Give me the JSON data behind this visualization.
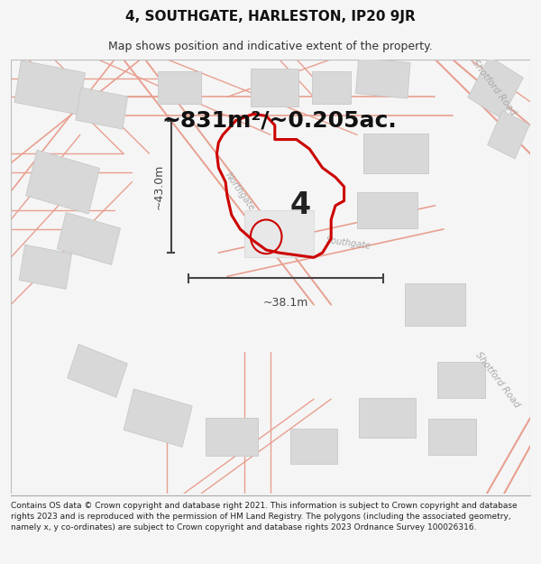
{
  "title_line1": "4, SOUTHGATE, HARLESTON, IP20 9JR",
  "title_line2": "Map shows position and indicative extent of the property.",
  "area_text": "~831m²/~0.205ac.",
  "label_4": "4",
  "dim_vertical": "~43.0m",
  "dim_horizontal": "~38.1m",
  "road_label_shotford1": "Shotford Road",
  "road_label_shotford2": "Shotford Road",
  "road_label_southgate": "Southgate",
  "road_label_northgate": "Northgate",
  "footer_text": "Contains OS data © Crown copyright and database right 2021. This information is subject to Crown copyright and database rights 2023 and is reproduced with the permission of HM Land Registry. The polygons (including the associated geometry, namely x, y co-ordinates) are subject to Crown copyright and database rights 2023 Ordnance Survey 100026316.",
  "bg_color": "#f5f5f5",
  "map_bg": "#ffffff",
  "road_color": "#e8a090",
  "building_fill": "#d8d8d8",
  "building_edge": "#c8c8c8",
  "property_line_color": "#cc0000",
  "dim_line_color": "#444444",
  "road_label_color": "#aaaaaa",
  "title_fontsize": 11,
  "subtitle_fontsize": 9,
  "area_fontsize": 18,
  "dim_fontsize": 9,
  "label4_fontsize": 24,
  "road_label_fontsize": 7.5,
  "footer_fontsize": 6.5
}
